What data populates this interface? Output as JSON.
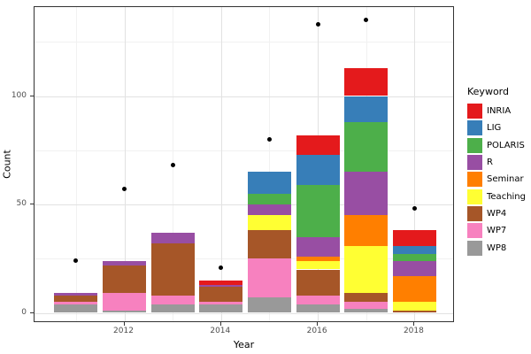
{
  "chart_data": {
    "type": "bar",
    "subtype": "stacked-bars-with-points",
    "title": "",
    "xlabel": "Year",
    "ylabel": "Count",
    "legend_title": "Keyword",
    "legend_position": "right",
    "grid": "on",
    "x": [
      2011,
      2012,
      2013,
      2014,
      2015,
      2016,
      2017,
      2018
    ],
    "x_tick_labels": [
      "2012",
      "2014",
      "2016",
      "2018"
    ],
    "x_major_ticks": [
      2012,
      2014,
      2016,
      2018
    ],
    "x_minor_ticks": [
      2011,
      2013,
      2015,
      2017
    ],
    "y_tick_labels": [
      "0",
      "50",
      "100"
    ],
    "y_major_ticks": [
      0,
      50,
      100
    ],
    "y_minor_ticks": [
      25,
      75,
      125
    ],
    "ylim": [
      -4,
      141
    ],
    "series": [
      {
        "name": "INRIA",
        "color": "#E41A1C",
        "values": [
          0,
          0,
          0,
          2,
          0,
          9,
          13,
          7
        ]
      },
      {
        "name": "LIG",
        "color": "#377EB8",
        "values": [
          0,
          0,
          0,
          0,
          10,
          14,
          12,
          4
        ]
      },
      {
        "name": "POLARIS",
        "color": "#4DAF4A",
        "values": [
          0,
          0,
          0,
          0,
          5,
          24,
          23,
          3
        ]
      },
      {
        "name": "R",
        "color": "#984EA3",
        "values": [
          1,
          2,
          5,
          1,
          5,
          9,
          20,
          7
        ]
      },
      {
        "name": "Seminar",
        "color": "#FF7F00",
        "values": [
          0,
          0,
          0,
          0,
          0,
          2,
          14,
          12
        ]
      },
      {
        "name": "Teaching",
        "color": "#FFFF33",
        "values": [
          0,
          0,
          0,
          0,
          7,
          4,
          22,
          4
        ]
      },
      {
        "name": "WP4",
        "color": "#A65628",
        "values": [
          3,
          13,
          24,
          7,
          13,
          12,
          4,
          1
        ]
      },
      {
        "name": "WP7",
        "color": "#F781BF",
        "values": [
          1,
          8,
          4,
          1,
          18,
          4,
          3,
          0
        ]
      },
      {
        "name": "WP8",
        "color": "#999999",
        "values": [
          4,
          1,
          4,
          4,
          7,
          4,
          2,
          0
        ]
      }
    ],
    "bar_totals": [
      9,
      24,
      37,
      15,
      65,
      82,
      113,
      38
    ],
    "points": {
      "marker": "black-dot",
      "values": [
        24,
        57,
        68,
        21,
        80,
        133,
        135,
        48
      ]
    },
    "stack_order_top_to_bottom": [
      "INRIA",
      "LIG",
      "POLARIS",
      "R",
      "Seminar",
      "Teaching",
      "WP4",
      "WP7",
      "WP8"
    ],
    "colors": {
      "panel_border": "#333333",
      "grid_major": "#e2e2e2",
      "grid_minor": "#f1f1f1",
      "tick_label": "#4d4d4d",
      "point": "#000000"
    }
  }
}
